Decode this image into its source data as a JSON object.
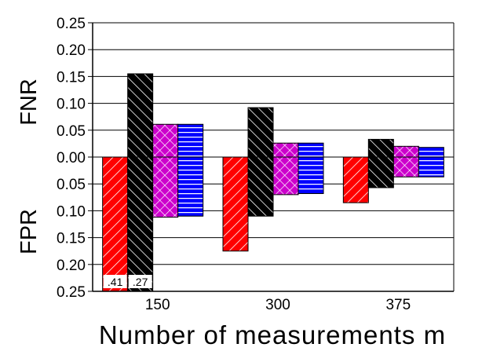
{
  "chart_data": {
    "type": "bar",
    "categories": [
      "150",
      "300",
      "375"
    ],
    "ylabel_top": "FNR",
    "ylabel_bottom": "FPR",
    "xlabel": "Number of measurements m",
    "yticks": [
      "0.25",
      "0.20",
      "0.15",
      "0.10",
      "0.05",
      "0.00",
      "0.05",
      "0.10",
      "0.15",
      "0.20",
      "0.25"
    ],
    "ylim_fnr": [
      0,
      0.25
    ],
    "ylim_fpr": [
      0,
      0.25
    ],
    "grid": true,
    "series": [
      {
        "color": "#ff0000",
        "pattern": "diag-down",
        "fnr": [
          0,
          0,
          0
        ],
        "fpr": [
          0.41,
          0.175,
          0.085
        ]
      },
      {
        "color": "#000000",
        "pattern": "diag-up",
        "fnr": [
          0.155,
          0.092,
          0.033
        ],
        "fpr": [
          0.27,
          0.11,
          0.057
        ]
      },
      {
        "color": "#cc00cc",
        "pattern": "cross",
        "fnr": [
          0.061,
          0.026,
          0.02
        ],
        "fpr": [
          0.112,
          0.07,
          0.037
        ]
      },
      {
        "color": "#0000ff",
        "pattern": "horizontal",
        "fnr": [
          0.061,
          0.026,
          0.018
        ],
        "fpr": [
          0.11,
          0.068,
          0.037
        ]
      }
    ],
    "clipped_labels": [
      {
        "series": 0,
        "category": 0,
        "text": ".41"
      },
      {
        "series": 1,
        "category": 0,
        "text": ".27"
      }
    ]
  }
}
